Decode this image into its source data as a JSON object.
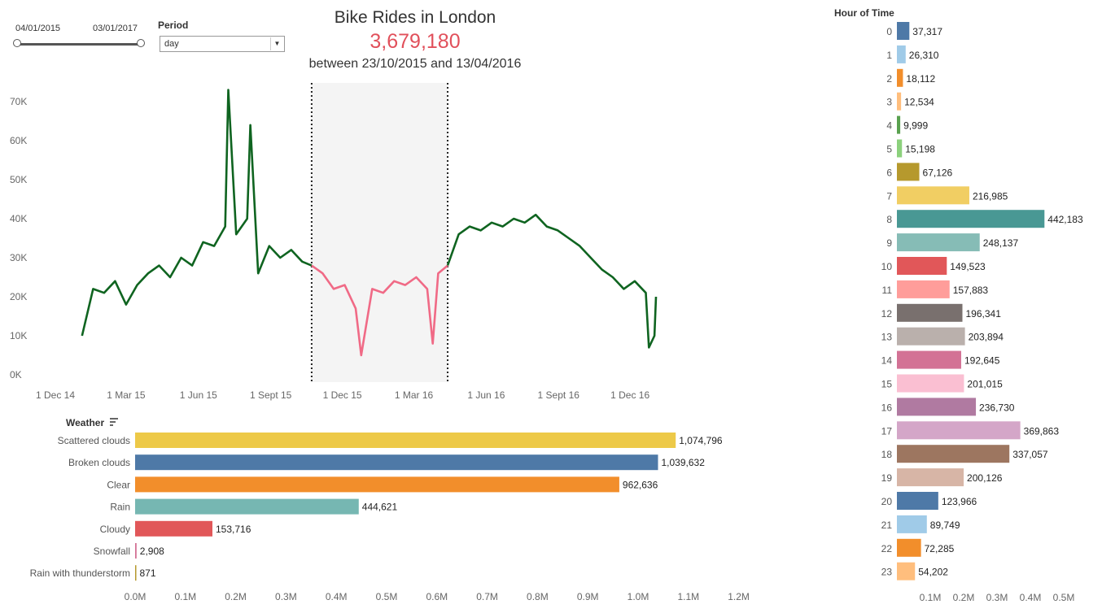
{
  "filters": {
    "start_date": "04/01/2015",
    "end_date": "03/01/2017",
    "period_label": "Period",
    "period_value": "day"
  },
  "header": {
    "title": "Bike Rides in London",
    "total": "3,679,180",
    "subtitle": "between 23/10/2015 and 13/04/2016"
  },
  "colors": {
    "line_main": "#0f6420",
    "line_highlight": "#f06a86",
    "highlight_band": "#f4f4f4",
    "total": "#e1505b"
  },
  "chart_data": [
    {
      "type": "line",
      "title": "",
      "series": [
        {
          "x": [
            "2015-01-04",
            "2015-01-18",
            "2015-02-01",
            "2015-02-15",
            "2015-03-01",
            "2015-03-15",
            "2015-03-29",
            "2015-04-12",
            "2015-04-26",
            "2015-05-10",
            "2015-05-24",
            "2015-06-07",
            "2015-06-21",
            "2015-07-05",
            "2015-07-09",
            "2015-07-19",
            "2015-08-02",
            "2015-08-06",
            "2015-08-16",
            "2015-08-30",
            "2015-09-13",
            "2015-09-27",
            "2015-10-11",
            "2015-10-23"
          ],
          "values": [
            10000,
            22000,
            21000,
            24000,
            18000,
            23000,
            26000,
            28000,
            25000,
            30000,
            28000,
            34000,
            33000,
            38000,
            73000,
            36000,
            40000,
            64000,
            26000,
            33000,
            30000,
            32000,
            29000,
            28000
          ]
        },
        {
          "x": [
            "2015-10-23",
            "2015-11-06",
            "2015-11-20",
            "2015-12-04",
            "2015-12-18",
            "2015-12-25",
            "2016-01-08",
            "2016-01-22",
            "2016-02-05",
            "2016-02-19",
            "2016-03-04",
            "2016-03-18",
            "2016-03-25",
            "2016-04-01",
            "2016-04-13"
          ],
          "values": [
            28000,
            26000,
            22000,
            23000,
            17000,
            5000,
            22000,
            21000,
            24000,
            23000,
            25000,
            22000,
            8000,
            26000,
            28000
          ]
        },
        {
          "x": [
            "2016-04-13",
            "2016-04-27",
            "2016-05-11",
            "2016-05-25",
            "2016-06-08",
            "2016-06-22",
            "2016-07-06",
            "2016-07-20",
            "2016-08-03",
            "2016-08-17",
            "2016-08-31",
            "2016-09-14",
            "2016-09-28",
            "2016-10-12",
            "2016-10-26",
            "2016-11-09",
            "2016-11-23",
            "2016-12-07",
            "2016-12-21",
            "2016-12-25",
            "2017-01-01",
            "2017-01-03"
          ],
          "values": [
            28000,
            36000,
            38000,
            37000,
            39000,
            38000,
            40000,
            39000,
            41000,
            38000,
            37000,
            35000,
            33000,
            30000,
            27000,
            25000,
            22000,
            24000,
            21000,
            7000,
            10000,
            20000
          ]
        }
      ],
      "highlight_range": [
        "2015-10-23",
        "2016-04-13"
      ],
      "ylim": [
        0,
        75000
      ],
      "y_ticks": [
        "0K",
        "10K",
        "20K",
        "30K",
        "40K",
        "50K",
        "60K",
        "70K"
      ],
      "x_ticks": [
        "1 Dec 14",
        "1 Mar 15",
        "1 Jun 15",
        "1 Sept 15",
        "1 Dec 15",
        "1 Mar 16",
        "1 Jun 16",
        "1 Sept 16",
        "1 Dec 16"
      ],
      "grid": false
    },
    {
      "type": "bar",
      "title": "Weather",
      "categories": [
        "Scattered clouds",
        "Broken clouds",
        "Clear",
        "Rain",
        "Cloudy",
        "Snowfall",
        "Rain with thunderstorm"
      ],
      "values": [
        1074796,
        1039632,
        962636,
        444621,
        153716,
        2908,
        871
      ],
      "labels": [
        "1,074,796",
        "1,039,632",
        "962,636",
        "444,621",
        "153,716",
        "2,908",
        "871"
      ],
      "colors": [
        "#edc948",
        "#4e79a7",
        "#f28e2b",
        "#76b7b2",
        "#e15759",
        "#d37295",
        "#b6992d"
      ],
      "x_ticks": [
        "0.0M",
        "0.1M",
        "0.2M",
        "0.3M",
        "0.4M",
        "0.5M",
        "0.6M",
        "0.7M",
        "0.8M",
        "0.9M",
        "1.0M",
        "1.1M",
        "1.2M"
      ],
      "xlim": [
        0,
        1200000
      ]
    },
    {
      "type": "bar",
      "title": "Hour of Time",
      "categories": [
        "0",
        "1",
        "2",
        "3",
        "4",
        "5",
        "6",
        "7",
        "8",
        "9",
        "10",
        "11",
        "12",
        "13",
        "14",
        "15",
        "16",
        "17",
        "18",
        "19",
        "20",
        "21",
        "22",
        "23"
      ],
      "values": [
        37317,
        26310,
        18112,
        12534,
        9999,
        15198,
        67126,
        216985,
        442183,
        248137,
        149523,
        157883,
        196341,
        203894,
        192645,
        201015,
        236730,
        369863,
        337057,
        200126,
        123966,
        89749,
        72285,
        54202
      ],
      "labels": [
        "37,317",
        "26,310",
        "18,112",
        "12,534",
        "9,999",
        "15,198",
        "67,126",
        "216,985",
        "442,183",
        "248,137",
        "149,523",
        "157,883",
        "196,341",
        "203,894",
        "192,645",
        "201,015",
        "236,730",
        "369,863",
        "337,057",
        "200,126",
        "123,966",
        "89,749",
        "72,285",
        "54,202"
      ],
      "colors": [
        "#4e79a7",
        "#a0cbe8",
        "#f28e2b",
        "#ffbe7d",
        "#59a14f",
        "#8cd17d",
        "#b6992d",
        "#f1ce63",
        "#499894",
        "#86bcb6",
        "#e15759",
        "#ff9d9a",
        "#79706e",
        "#bab0ac",
        "#d37295",
        "#fabfd2",
        "#b07aa1",
        "#d4a6c8",
        "#9d7660",
        "#d7b5a6",
        "#4e79a7",
        "#a0cbe8",
        "#f28e2b",
        "#ffbe7d"
      ],
      "x_ticks": [
        "0.1M",
        "0.2M",
        "0.3M",
        "0.4M",
        "0.5M"
      ],
      "xlim": [
        0,
        500000
      ]
    }
  ]
}
